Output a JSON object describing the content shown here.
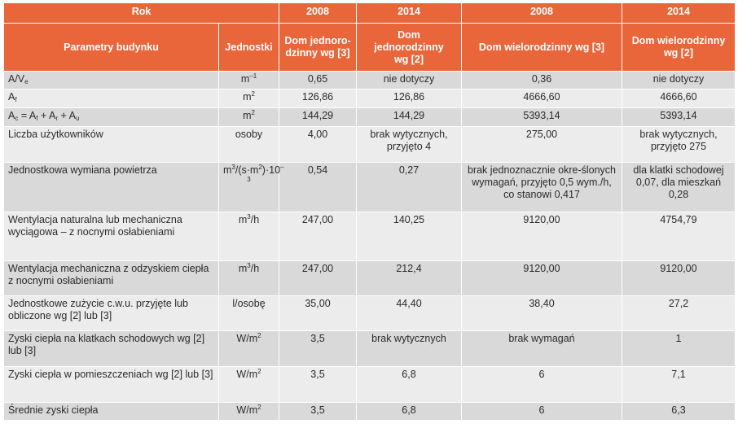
{
  "header": {
    "rok_label": "Rok",
    "years": [
      "2008",
      "2014",
      "2008",
      "2014"
    ],
    "param_label": "Parametry budynku",
    "unit_label": "Jednostki",
    "col_titles": [
      "Dom jednoro-dzinny wg [3]",
      "Dom jednorodzinny wg [2]",
      "Dom wielorodzinny wg [3]",
      "Dom wielorodzinny wg [2]"
    ]
  },
  "rows": [
    {
      "param": "A/Ve",
      "unit": "m⁻¹",
      "v1": "0,65",
      "v2": "nie dotyczy",
      "v3": "0,36",
      "v4": "nie dotyczy"
    },
    {
      "param": "Af",
      "unit": "m2",
      "v1": "126,86",
      "v2": "126,86",
      "v3": "4666,60",
      "v4": "4666,60"
    },
    {
      "param": "Ac = Af + Ar + Au",
      "unit": "m2",
      "v1": "144,29",
      "v2": "144,29",
      "v3": "5393,14",
      "v4": "5393,14"
    },
    {
      "param": "Liczba użytkowników",
      "unit": "osoby",
      "v1": "4,00",
      "v2": "brak wytycznych, przyjęto 4",
      "v3": "275,00",
      "v4": "brak wytycznych, przyjęto 275"
    },
    {
      "param": "Jednostkowa wymiana powietrza",
      "unit": "m3/(s·m2)·10-3",
      "v1": "0,54",
      "v2": "0,27",
      "v3": "brak jednoznacznie okre-ślonych wymagań, przyjęto 0,5 wym./h, co stanowi 0,417",
      "v4": "dla klatki schodowej 0,07, dla mieszkań 0,28"
    },
    {
      "param": "Wentylacja naturalna lub mechaniczna wyciągowa – z nocnymi osłabieniami",
      "unit": "m3/h",
      "v1": "247,00",
      "v2": "140,25",
      "v3": "9120,00",
      "v4": "4754,79"
    },
    {
      "param": "Wentylacja mechaniczna z odzyskiem ciepła z nocnymi osłabieniami",
      "unit": "m3/h",
      "v1": "247,00",
      "v2": "212,4",
      "v3": "9120,00",
      "v4": "9120,00"
    },
    {
      "param": "Jednostkowe zużycie c.w.u. przyjęte lub obliczone wg [2] lub [3]",
      "unit": "l/osobę",
      "v1": "35,00",
      "v2": "44,40",
      "v3": "38,40",
      "v4": "27,2"
    },
    {
      "param": "Zyski ciepła na klatkach schodowych wg [2] lub [3]",
      "unit": "W/m2",
      "v1": "3,5",
      "v2": "brak wytycznych",
      "v3": "brak wymagań",
      "v4": "1"
    },
    {
      "param": "Zyski ciepła w pomieszczeniach wg [2] lub [3]",
      "unit": "W/m2",
      "v1": "3,5",
      "v2": "6,8",
      "v3": "6",
      "v4": "7,1"
    },
    {
      "param": "Średnie zyski ciepła",
      "unit": "W/m2",
      "v1": "3,5",
      "v2": "6,8",
      "v3": "6",
      "v4": "6,3"
    }
  ]
}
